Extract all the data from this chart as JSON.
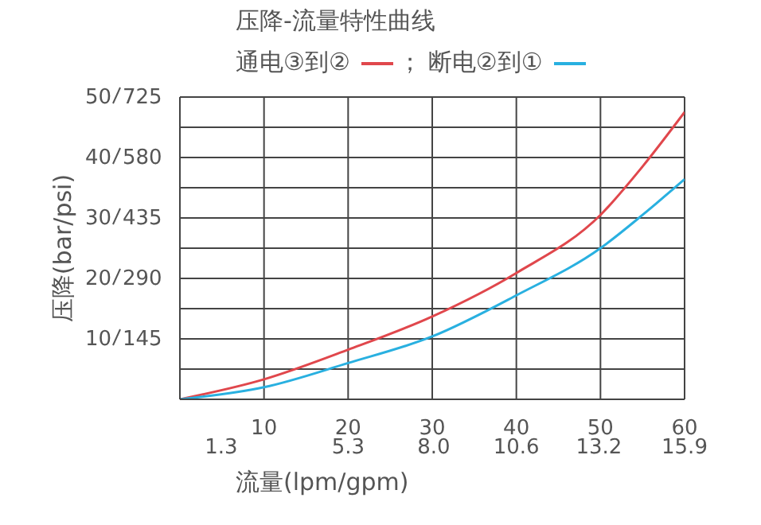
{
  "chart_data": {
    "type": "line",
    "title": "压降-流量特性曲线",
    "xlabel": "流量(lpm/gpm)",
    "ylabel": "压降(bar/psi)",
    "annotations": [
      "；"
    ],
    "legend": "top",
    "grid": true,
    "marker": "none",
    "line_style": "solid",
    "x": [
      0,
      10,
      20,
      30,
      40,
      50,
      55,
      60
    ],
    "series": [
      {
        "name": "通电③到②",
        "color": "#e0474c",
        "values": [
          0,
          3.3,
          8.2,
          13.7,
          20.9,
          30.5,
          38.5,
          47.5
        ]
      },
      {
        "name": "断电②到①",
        "color": "#29b0e0",
        "values": [
          0,
          2,
          6,
          10.4,
          17.2,
          25,
          30.5,
          36.4
        ]
      }
    ],
    "xlim": [
      0,
      60
    ],
    "xticks": [
      {
        "value": 0,
        "label": null
      },
      10,
      20,
      30,
      40,
      50,
      60
    ],
    "x2lim": [
      0,
      15.9
    ],
    "x2ticks": [
      1.3,
      5.3,
      {
        "value": 8,
        "label": "8.0"
      },
      10.6,
      13.2,
      15.9
    ],
    "y2lim": [
      0,
      725
    ],
    "y2ticks": [
      145,
      290,
      435,
      580,
      725
    ],
    "ylim": [
      0,
      50
    ],
    "yticks": [
      {
        "value": 0,
        "label": null
      },
      {
        "value": 5,
        "label": null
      },
      10,
      {
        "value": 15,
        "label": null
      },
      20,
      {
        "value": 25,
        "label": null
      },
      30,
      {
        "value": 35,
        "label": null
      },
      40,
      {
        "value": 45,
        "label": null
      },
      50
    ]
  }
}
